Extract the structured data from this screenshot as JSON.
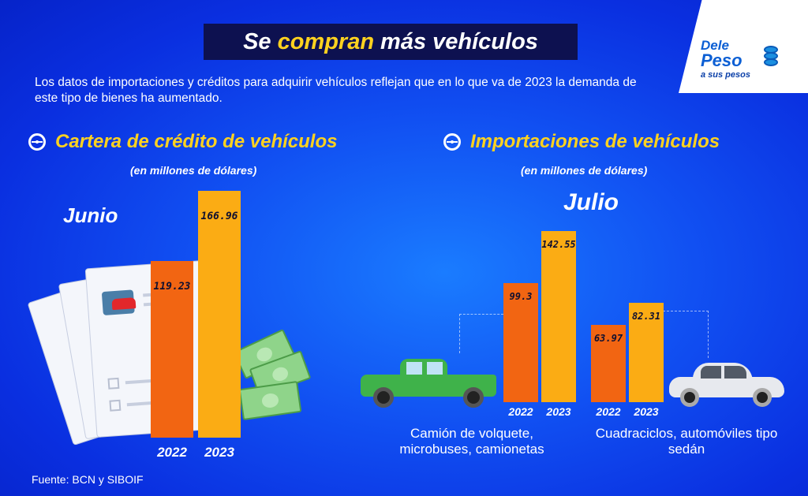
{
  "header": {
    "title_prefix": "Se",
    "title_highlight": "compran",
    "title_suffix": "más vehículos",
    "intro": "Los datos de importaciones y créditos para adquirir vehículos reflejan que en lo que va de 2023 la demanda de este tipo de bienes ha aumentado."
  },
  "logo": {
    "line1": "Dele",
    "line2": "Peso",
    "line3": "a sus pesos",
    "color": "#0c5fd4"
  },
  "colors": {
    "series_2022": "#f26512",
    "series_2023": "#fbac14",
    "accent_title": "#ffd21f"
  },
  "chart_data": [
    {
      "type": "bar",
      "title": "Cartera de crédito de vehículos",
      "subtitle": "(en millones de dólares)",
      "period": "Junio",
      "categories": [
        "2022",
        "2023"
      ],
      "values": [
        119.23,
        166.96
      ],
      "ylim": [
        0,
        200
      ],
      "icon": "steering-wheel-icon"
    },
    {
      "type": "bar",
      "title": "Importaciones de vehículos",
      "subtitle": "(en millones de dólares)",
      "period": "Julio",
      "icon": "steering-wheel-icon",
      "ylim": [
        0,
        200
      ],
      "groups": [
        {
          "name": "Camión de volquete, microbuses, camionetas",
          "categories": [
            "2022",
            "2023"
          ],
          "values": [
            99.3,
            142.55
          ],
          "icon": "pickup-truck-icon"
        },
        {
          "name": "Cuadraciclos, automóviles tipo sedán",
          "categories": [
            "2022",
            "2023"
          ],
          "values": [
            63.97,
            82.31
          ],
          "icon": "sedan-car-icon"
        }
      ]
    }
  ],
  "footer": {
    "source": "Fuente: BCN y SIBOIF"
  }
}
